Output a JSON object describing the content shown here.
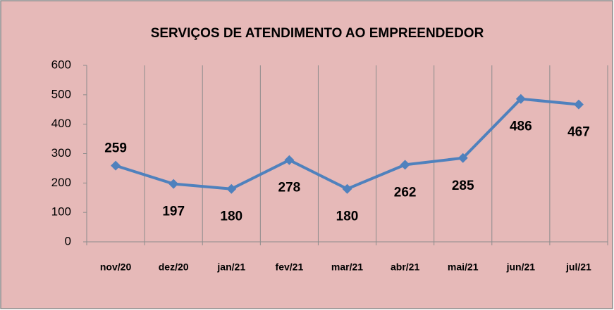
{
  "chart_data": {
    "type": "line",
    "title": "SERVIÇOS DE ATENDIMENTO AO EMPREENDEDOR",
    "categories": [
      "nov/20",
      "dez/20",
      "jan/21",
      "fev/21",
      "mar/21",
      "abr/21",
      "mai/21",
      "jun/21",
      "jul/21"
    ],
    "values": [
      259,
      197,
      180,
      278,
      180,
      262,
      285,
      486,
      467
    ],
    "color": "#4f81bd",
    "ylim": [
      0,
      600
    ],
    "yticks": [
      0,
      100,
      200,
      300,
      400,
      500,
      600
    ],
    "grid": true
  }
}
